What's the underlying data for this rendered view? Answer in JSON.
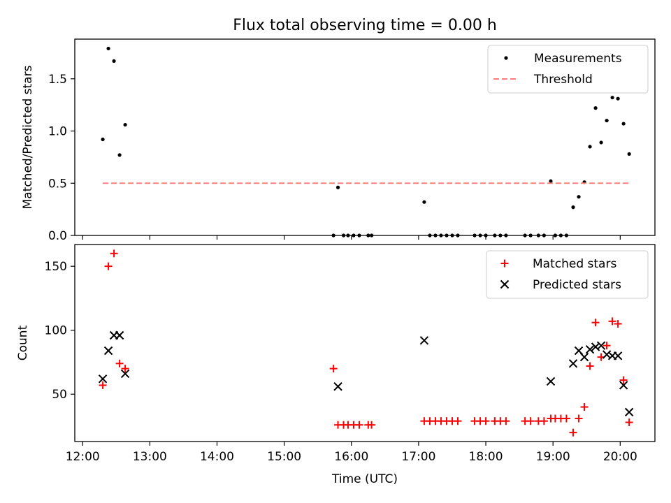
{
  "chart_data": [
    {
      "type": "scatter",
      "title": "Flux total observing time = 0.00 h",
      "xlabel": "",
      "ylabel": "Matched/Predicted stars",
      "x_unit": "time (UTC)",
      "xlim": [
        "11:53",
        "20:31"
      ],
      "ylim": [
        0,
        1.88
      ],
      "xticks": [
        "12:00",
        "13:00",
        "14:00",
        "15:00",
        "16:00",
        "17:00",
        "18:00",
        "19:00",
        "20:00"
      ],
      "yticks": [
        0.0,
        0.5,
        1.0,
        1.5
      ],
      "ytick_labels": [
        "0.0",
        "0.5",
        "1.0",
        "1.5"
      ],
      "show_xtick_labels": false,
      "legend": {
        "position": "top-right",
        "entries": [
          "Measurements",
          "Threshold"
        ]
      },
      "series": [
        {
          "name": "Measurements",
          "marker": "dot",
          "color": "#000000",
          "points": [
            [
              "12:18",
              0.92
            ],
            [
              "12:23",
              1.79
            ],
            [
              "12:28",
              1.67
            ],
            [
              "12:33",
              0.77
            ],
            [
              "12:38",
              1.06
            ],
            [
              "15:44",
              0.0
            ],
            [
              "15:48",
              0.46
            ],
            [
              "15:53",
              0.0
            ],
            [
              "15:57",
              0.0
            ],
            [
              "16:02",
              0.0
            ],
            [
              "16:07",
              0.0
            ],
            [
              "16:15",
              0.0
            ],
            [
              "16:18",
              0.0
            ],
            [
              "17:05",
              0.32
            ],
            [
              "17:10",
              0.0
            ],
            [
              "17:15",
              0.0
            ],
            [
              "17:20",
              0.0
            ],
            [
              "17:25",
              0.0
            ],
            [
              "17:30",
              0.0
            ],
            [
              "17:35",
              0.0
            ],
            [
              "17:50",
              0.0
            ],
            [
              "17:55",
              0.0
            ],
            [
              "18:00",
              0.0
            ],
            [
              "18:08",
              0.0
            ],
            [
              "18:13",
              0.0
            ],
            [
              "18:18",
              0.0
            ],
            [
              "18:35",
              0.0
            ],
            [
              "18:40",
              0.0
            ],
            [
              "18:47",
              0.0
            ],
            [
              "18:52",
              0.0
            ],
            [
              "18:58",
              0.52
            ],
            [
              "19:02",
              0.0
            ],
            [
              "19:07",
              0.0
            ],
            [
              "19:12",
              0.0
            ],
            [
              "19:18",
              0.27
            ],
            [
              "19:23",
              0.37
            ],
            [
              "19:28",
              0.51
            ],
            [
              "19:33",
              0.85
            ],
            [
              "19:38",
              1.22
            ],
            [
              "19:43",
              0.89
            ],
            [
              "19:48",
              1.1
            ],
            [
              "19:53",
              1.32
            ],
            [
              "19:58",
              1.31
            ],
            [
              "20:03",
              1.07
            ],
            [
              "20:08",
              0.78
            ]
          ]
        },
        {
          "name": "Threshold",
          "style": "dashed",
          "color": "#ff7f7f",
          "points": [
            [
              "12:18",
              0.5
            ],
            [
              "20:08",
              0.5
            ]
          ]
        }
      ]
    },
    {
      "type": "scatter",
      "title": "",
      "xlabel": "Time (UTC)",
      "ylabel": "Count",
      "x_unit": "time (UTC)",
      "xlim": [
        "11:53",
        "20:31"
      ],
      "ylim": [
        13,
        167
      ],
      "xticks": [
        "12:00",
        "13:00",
        "14:00",
        "15:00",
        "16:00",
        "17:00",
        "18:00",
        "19:00",
        "20:00"
      ],
      "yticks": [
        50,
        100,
        150
      ],
      "ytick_labels": [
        "50",
        "100",
        "150"
      ],
      "show_xtick_labels": true,
      "legend": {
        "position": "top-right",
        "entries": [
          "Matched stars",
          "Predicted stars"
        ]
      },
      "series": [
        {
          "name": "Matched stars",
          "marker": "plus",
          "color": "#ff0000",
          "points": [
            [
              "12:18",
              57
            ],
            [
              "12:23",
              150
            ],
            [
              "12:28",
              160
            ],
            [
              "12:33",
              74
            ],
            [
              "12:38",
              70
            ],
            [
              "15:44",
              70
            ],
            [
              "15:48",
              26
            ],
            [
              "15:53",
              26
            ],
            [
              "15:57",
              26
            ],
            [
              "16:02",
              26
            ],
            [
              "16:07",
              26
            ],
            [
              "16:15",
              26
            ],
            [
              "16:18",
              26
            ],
            [
              "17:05",
              29
            ],
            [
              "17:10",
              29
            ],
            [
              "17:15",
              29
            ],
            [
              "17:20",
              29
            ],
            [
              "17:25",
              29
            ],
            [
              "17:30",
              29
            ],
            [
              "17:35",
              29
            ],
            [
              "17:50",
              29
            ],
            [
              "17:55",
              29
            ],
            [
              "18:00",
              29
            ],
            [
              "18:08",
              29
            ],
            [
              "18:13",
              29
            ],
            [
              "18:18",
              29
            ],
            [
              "18:35",
              29
            ],
            [
              "18:40",
              29
            ],
            [
              "18:47",
              29
            ],
            [
              "18:52",
              29
            ],
            [
              "18:58",
              31
            ],
            [
              "19:02",
              31
            ],
            [
              "19:07",
              31
            ],
            [
              "19:12",
              31
            ],
            [
              "19:18",
              20
            ],
            [
              "19:23",
              31
            ],
            [
              "19:28",
              40
            ],
            [
              "19:33",
              72
            ],
            [
              "19:38",
              106
            ],
            [
              "19:43",
              79
            ],
            [
              "19:48",
              88
            ],
            [
              "19:53",
              107
            ],
            [
              "19:58",
              105
            ],
            [
              "20:03",
              61
            ],
            [
              "20:08",
              28
            ]
          ]
        },
        {
          "name": "Predicted stars",
          "marker": "x",
          "color": "#000000",
          "points": [
            [
              "12:18",
              62
            ],
            [
              "12:23",
              84
            ],
            [
              "12:28",
              96
            ],
            [
              "12:33",
              96
            ],
            [
              "12:38",
              66
            ],
            [
              "15:48",
              56
            ],
            [
              "17:05",
              92
            ],
            [
              "18:58",
              60
            ],
            [
              "19:18",
              74
            ],
            [
              "19:23",
              84
            ],
            [
              "19:28",
              79
            ],
            [
              "19:33",
              85
            ],
            [
              "19:38",
              87
            ],
            [
              "19:43",
              88
            ],
            [
              "19:48",
              81
            ],
            [
              "19:53",
              80
            ],
            [
              "19:58",
              80
            ],
            [
              "20:03",
              57
            ],
            [
              "20:08",
              36
            ]
          ]
        }
      ]
    }
  ]
}
